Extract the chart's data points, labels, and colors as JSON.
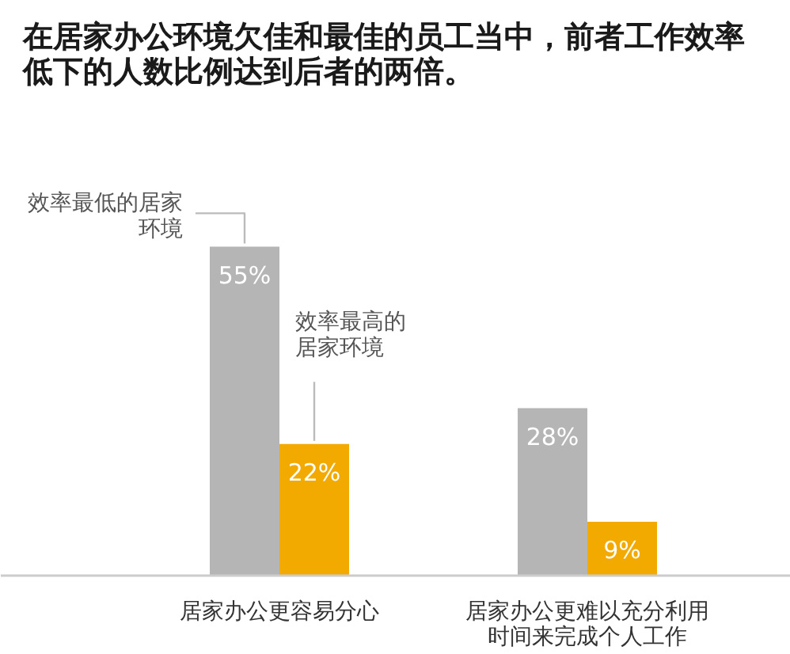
{
  "chart_data": {
    "type": "bar",
    "title": "在居家办公环境欠佳和最佳的员工当中，前者工作效率低下的人数比例达到后者的两倍。",
    "categories": [
      "居家办公更容易分心",
      "居家办公更难以充分利用时间来完成个人工作"
    ],
    "series": [
      {
        "name": "效率最低的居家环境",
        "color": "#b5b5b5",
        "values": [
          55,
          28
        ],
        "value_labels": [
          "55%",
          "28%"
        ]
      },
      {
        "name": "效率最高的居家环境",
        "color": "#f2a900",
        "values": [
          22,
          9
        ],
        "value_labels": [
          "22%",
          "9%"
        ]
      }
    ]
  }
}
